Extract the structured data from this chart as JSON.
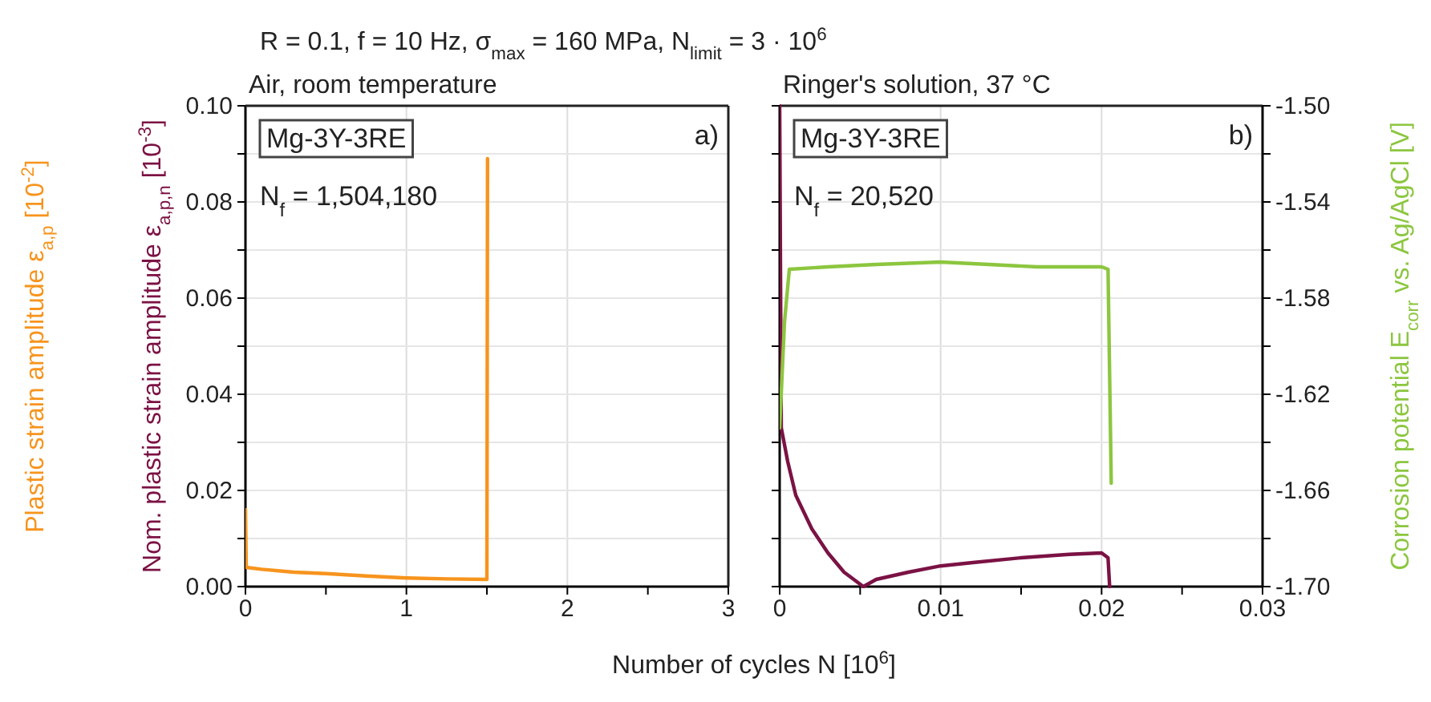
{
  "chart_data": [
    {
      "type": "line",
      "title": "R = 0.1, f = 10 Hz, σ$_{max}$ = 160 MPa, N$_{limit}$ = 3 · 10$^{6}$",
      "subtitle": "Air, room temperature",
      "xlabel": "Number of cycles N [10$^{6}$]",
      "ylabel": "Plastic strain amplitude ε$_{a,p}$ [10$^{-2}$]",
      "xlim": [
        0,
        3
      ],
      "xticks": [
        0,
        {
          "value": 0.5,
          "label": null
        },
        1,
        {
          "value": 1.5,
          "label": null
        },
        2,
        {
          "value": 2.5,
          "label": null
        },
        3
      ],
      "ylim": [
        0,
        0.1
      ],
      "yticks": [
        "0.00",
        {
          "value": 0.01,
          "label": null
        },
        {
          "value": 0.02,
          "label": "0.02"
        },
        {
          "value": 0.03,
          "label": null
        },
        {
          "value": 0.04,
          "label": "0.04"
        },
        {
          "value": 0.05,
          "label": null
        },
        {
          "value": 0.06,
          "label": "0.06"
        },
        {
          "value": 0.07,
          "label": null
        },
        {
          "value": 0.08,
          "label": "0.08"
        },
        {
          "value": 0.09,
          "label": null
        },
        {
          "value": 0.1,
          "label": "0.10"
        }
      ],
      "grid": true,
      "annotations": [
        "Mg-3Y-3RE",
        "N$_{f}$ = 1,504,180",
        "a)"
      ],
      "series": [
        {
          "color": "#f7941d",
          "x": [
            0,
            0.005,
            0.1,
            0.3,
            0.5,
            0.75,
            1.0,
            1.25,
            1.5,
            1.504
          ],
          "values": [
            0.016,
            0.004,
            0.0036,
            0.003,
            0.0027,
            0.0022,
            0.0018,
            0.0016,
            0.0015,
            0.089
          ]
        }
      ]
    },
    {
      "type": "line",
      "subtitle": "Ringer's solution, 37 °C",
      "ylabel": "Nom. plastic strain amplitude ε$_{a,p,n}$ [10$^{-3}$]",
      "y2label": "Corrosion potential E$_{corr}$ vs. Ag/AgCl [V]",
      "xlim": [
        0,
        0.03
      ],
      "xticks": [
        0,
        {
          "value": 0.005,
          "label": null
        },
        0.01,
        {
          "value": 0.015,
          "label": null
        },
        0.02,
        {
          "value": 0.025,
          "label": null
        },
        0.03
      ],
      "ylim": [
        0,
        0.1
      ],
      "yticks": [
        0,
        0.01,
        0.02,
        0.03,
        0.04,
        0.05,
        0.06,
        0.07,
        0.08,
        0.09,
        0.1
      ],
      "y2lim": [
        -1.7,
        -1.5
      ],
      "y2ticks": [
        {
          "value": -1.7,
          "label": "-1.70"
        },
        {
          "value": -1.68,
          "label": null
        },
        {
          "value": -1.66,
          "label": "-1.66"
        },
        {
          "value": -1.64,
          "label": null
        },
        {
          "value": -1.62,
          "label": "-1.62"
        },
        {
          "value": -1.6,
          "label": null
        },
        {
          "value": -1.58,
          "label": "-1.58"
        },
        {
          "value": -1.56,
          "label": null
        },
        {
          "value": -1.54,
          "label": "-1.54"
        },
        {
          "value": -1.52,
          "label": null
        },
        {
          "value": -1.5,
          "label": "-1.50"
        }
      ],
      "tick_labels": "x",
      "grid": true,
      "annotations": [
        "Mg-3Y-3RE",
        "N$_{f}$ = 20,520",
        "b)"
      ],
      "series": [
        {
          "color": "#7b1244",
          "x": [
            0,
            0.0001,
            0.0005,
            0.001,
            0.002,
            0.003,
            0.004,
            0.005,
            0.0052,
            0.006,
            0.008,
            0.01,
            0.012,
            0.015,
            0.018,
            0.02,
            0.0204,
            0.0205
          ],
          "values": [
            0.1,
            0.033,
            0.026,
            0.019,
            0.012,
            0.007,
            0.003,
            0.0005,
            0,
            0.0015,
            0.003,
            0.0043,
            0.005,
            0.006,
            0.0067,
            0.007,
            0.006,
            0
          ]
        },
        {
          "color": "#8cc63f",
          "axis": "y2",
          "x": [
            0,
            0.0003,
            0.0006,
            0.003,
            0.006,
            0.01,
            0.013,
            0.016,
            0.02,
            0.0204,
            0.0206
          ],
          "values": [
            -1.634,
            -1.59,
            -1.568,
            -1.567,
            -1.566,
            -1.565,
            -1.566,
            -1.567,
            -1.567,
            -1.568,
            -1.657
          ]
        }
      ]
    }
  ]
}
